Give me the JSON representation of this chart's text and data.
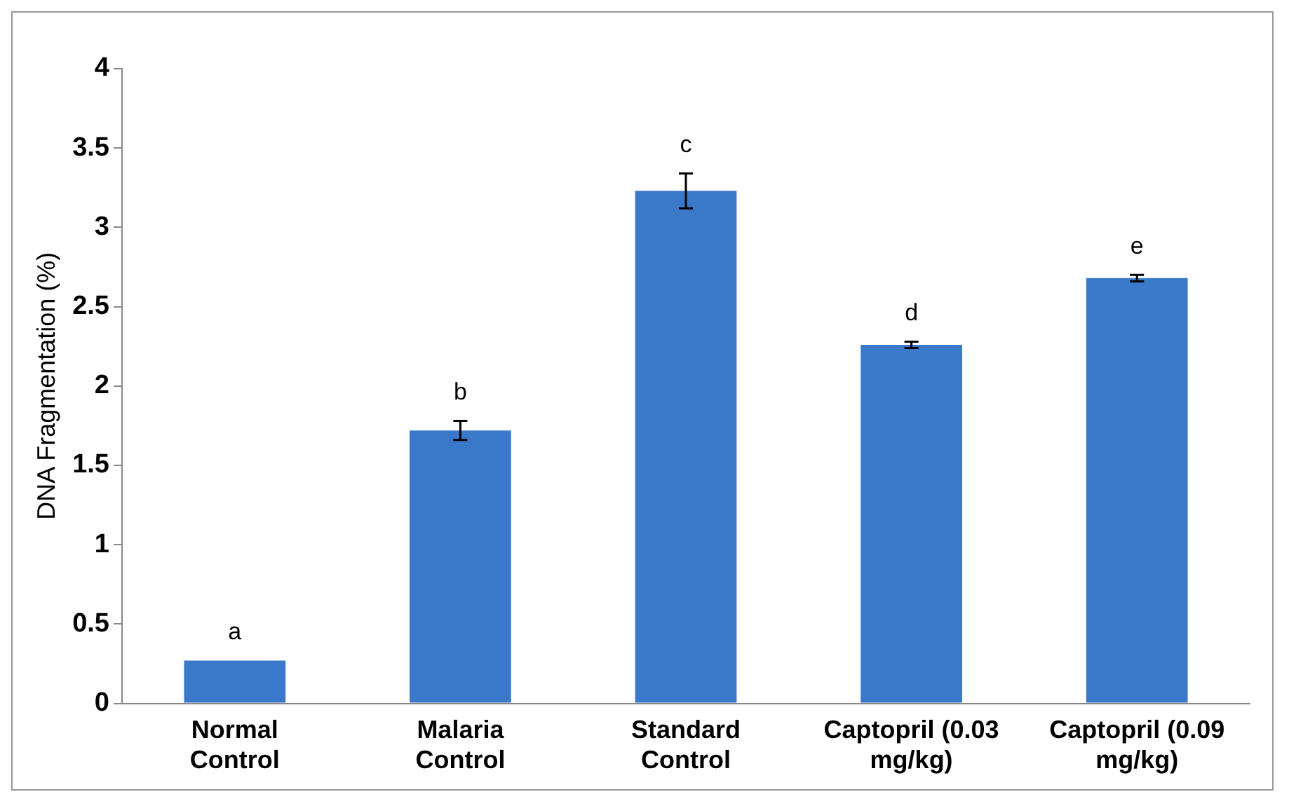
{
  "chart_data": {
    "type": "bar",
    "ylabel": "DNA Fragmentation (%)",
    "categories": [
      "Normal Control",
      "Malaria Control",
      "Standard Control",
      "Captopril (0.03 mg/kg)",
      "Captopril (0.09 mg/kg)"
    ],
    "values": [
      0.27,
      1.72,
      3.23,
      2.26,
      2.68
    ],
    "errors": [
      null,
      0.06,
      0.11,
      0.02,
      0.02
    ],
    "color": "#3a78c9",
    "ylim": [
      0,
      4
    ],
    "yticks": [
      0,
      0.5,
      1,
      1.5,
      2,
      2.5,
      3,
      3.5,
      4
    ],
    "grid": false,
    "legend": false,
    "annotations": [
      "a",
      "b",
      "c",
      "d",
      "e"
    ]
  }
}
